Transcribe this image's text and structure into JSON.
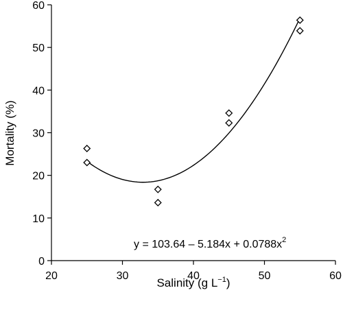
{
  "chart_data": {
    "type": "scatter",
    "title": "",
    "xlabel": "Salinity (g L",
    "xlabel_sup": "−1",
    "xlabel_close": ")",
    "ylabel": "Mortality (%)",
    "xlim": [
      20,
      60
    ],
    "ylim": [
      0,
      60
    ],
    "xticks": [
      20,
      30,
      40,
      50,
      60
    ],
    "yticks": [
      0,
      10,
      20,
      30,
      40,
      50,
      60
    ],
    "grid": false,
    "marker": "open-diamond",
    "points": [
      {
        "x": 25,
        "y": 26.3
      },
      {
        "x": 25,
        "y": 23.0
      },
      {
        "x": 35,
        "y": 16.7
      },
      {
        "x": 35,
        "y": 13.6
      },
      {
        "x": 45,
        "y": 34.6
      },
      {
        "x": 45,
        "y": 32.3
      },
      {
        "x": 55,
        "y": 56.4
      },
      {
        "x": 55,
        "y": 53.9
      }
    ],
    "fit": {
      "kind": "quadratic",
      "coefficients": [
        103.64,
        -5.184,
        0.0788
      ],
      "x_range": [
        25,
        55
      ]
    },
    "annotation": {
      "text": "y = 103.64 – 5.184x + 0.0788x",
      "sup": "2"
    }
  }
}
